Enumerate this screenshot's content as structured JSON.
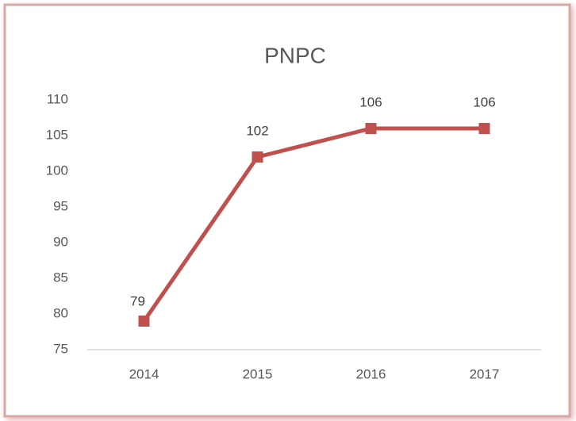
{
  "chart_data": {
    "type": "line",
    "title": "PNPC",
    "categories": [
      "2014",
      "2015",
      "2016",
      "2017"
    ],
    "series": [
      {
        "name": "PNPC",
        "color": "#c0504d",
        "values": [
          79,
          102,
          106,
          106
        ]
      }
    ],
    "ylim": [
      75,
      110
    ],
    "yticks": [
      75,
      80,
      85,
      90,
      95,
      100,
      105,
      110
    ],
    "grid": false
  }
}
